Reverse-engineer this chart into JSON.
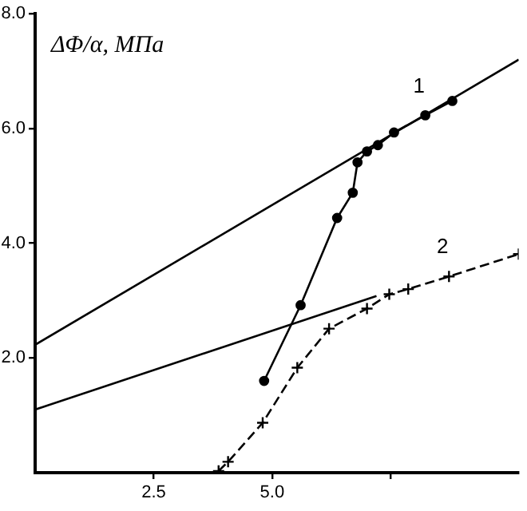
{
  "chart_data": {
    "type": "line",
    "ylabel": "ΔΦ/α, МПа",
    "xlim": [
      0,
      10.2
    ],
    "xticks": [
      2.5,
      {
        "value": 5.0,
        "label": "5.0"
      },
      {
        "value": 7.5,
        "label": null
      }
    ],
    "ylim": [
      0,
      8.0
    ],
    "yticks": [
      {
        "value": 2.0,
        "label": "2.0"
      },
      {
        "value": 4.0,
        "label": "4.0"
      },
      {
        "value": 6.0,
        "label": "6.0"
      },
      {
        "value": 8.0,
        "label": "8.0"
      }
    ],
    "grid": false,
    "legend": false,
    "series": [
      {
        "color": "#000000",
        "marker": "none",
        "line_style": "solid",
        "x": [
          0,
          10.2
        ],
        "values": [
          2.23,
          7.2
        ]
      },
      {
        "color": "#000000",
        "marker": "none",
        "line_style": "solid",
        "x": [
          0,
          7.2
        ],
        "values": [
          1.1,
          3.08
        ]
      },
      {
        "color": "#000000",
        "marker": "circle",
        "line_style": "solid",
        "x": [
          4.83,
          5.6,
          6.37,
          6.7,
          6.8,
          7.0,
          7.23,
          7.57,
          8.23,
          8.8
        ],
        "values": [
          1.6,
          2.92,
          4.44,
          4.88,
          5.41,
          5.6,
          5.71,
          5.93,
          6.23,
          6.48
        ]
      },
      {
        "color": "#000000",
        "marker": "cross",
        "line_style": "dashed",
        "x": [
          3.87,
          4.07,
          4.8,
          5.53,
          6.2,
          7.0,
          7.47,
          7.87,
          8.73,
          10.2
        ],
        "values": [
          0.03,
          0.19,
          0.87,
          1.83,
          2.51,
          2.86,
          3.11,
          3.2,
          3.42,
          3.81
        ]
      }
    ],
    "annotations": [
      "1",
      "2"
    ]
  }
}
